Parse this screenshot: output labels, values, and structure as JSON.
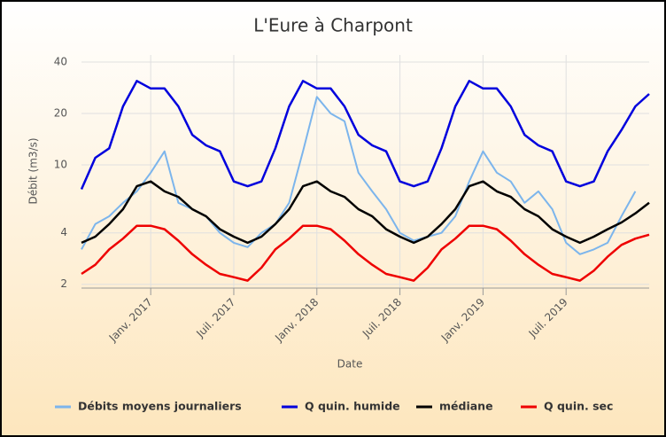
{
  "chart_data": {
    "type": "line",
    "title": "L'Eure à Charpont",
    "xlabel": "Date",
    "ylabel": "Débit (m3/s)",
    "x": [
      "2016-08",
      "2016-09",
      "2016-10",
      "2016-11",
      "2016-12",
      "2017-01",
      "2017-02",
      "2017-03",
      "2017-04",
      "2017-05",
      "2017-06",
      "2017-07",
      "2017-08",
      "2017-09",
      "2017-10",
      "2017-11",
      "2017-12",
      "2018-01",
      "2018-02",
      "2018-03",
      "2018-04",
      "2018-05",
      "2018-06",
      "2018-07",
      "2018-08",
      "2018-09",
      "2018-10",
      "2018-11",
      "2018-12",
      "2019-01",
      "2019-02",
      "2019-03",
      "2019-04",
      "2019-05",
      "2019-06",
      "2019-07",
      "2019-08",
      "2019-09",
      "2019-10",
      "2019-11",
      "2019-12",
      "2020-01"
    ],
    "xlim": [
      "2016-08",
      "2020-01"
    ],
    "xticks": [
      {
        "value": "2017-01",
        "label": "Janv. 2017"
      },
      {
        "value": "2017-07",
        "label": "Juil. 2017"
      },
      {
        "value": "2018-01",
        "label": "Janv. 2018"
      },
      {
        "value": "2018-07",
        "label": "Juil. 2018"
      },
      {
        "value": "2019-01",
        "label": "Janv. 2019"
      },
      {
        "value": "2019-07",
        "label": "Juil. 2019"
      }
    ],
    "ylim": [
      1.9,
      44
    ],
    "yticks": [
      2,
      4,
      10,
      20,
      40
    ],
    "log_y": true,
    "grid": true,
    "legend": "bottom",
    "series": [
      {
        "name": "Débits moyens journaliers",
        "color": "#7cb5ec",
        "values": [
          3.2,
          4.5,
          5,
          6,
          7,
          9,
          12,
          6,
          5.5,
          5,
          4,
          3.5,
          3.3,
          4,
          4.5,
          6,
          12,
          25,
          20,
          18,
          9,
          7,
          5.5,
          4,
          3.6,
          3.8,
          4,
          5,
          8,
          12,
          9,
          8,
          6,
          7,
          5.5,
          3.5,
          3,
          3.2,
          3.5,
          5,
          7,
          null
        ]
      },
      {
        "name": "Q quin. humide",
        "color": "#0000dd",
        "values": [
          7.2,
          11,
          12.5,
          22,
          31,
          28,
          28,
          22,
          15,
          13,
          12,
          8,
          7.5,
          8,
          12.5,
          22,
          31,
          28,
          28,
          22,
          15,
          13,
          12,
          8,
          7.5,
          8,
          12.5,
          22,
          31,
          28,
          28,
          22,
          15,
          13,
          12,
          8,
          7.5,
          8,
          12,
          16,
          22,
          26
        ]
      },
      {
        "name": "médiane",
        "color": "#000000",
        "values": [
          3.5,
          3.8,
          4.5,
          5.5,
          7.5,
          8,
          7,
          6.5,
          5.5,
          5,
          4.2,
          3.8,
          3.5,
          3.8,
          4.5,
          5.5,
          7.5,
          8,
          7,
          6.5,
          5.5,
          5,
          4.2,
          3.8,
          3.5,
          3.8,
          4.5,
          5.5,
          7.5,
          8,
          7,
          6.5,
          5.5,
          5,
          4.2,
          3.8,
          3.5,
          3.8,
          4.2,
          4.6,
          5.2,
          6
        ]
      },
      {
        "name": "Q quin. sec",
        "color": "#ee0000",
        "values": [
          2.3,
          2.6,
          3.2,
          3.7,
          4.4,
          4.4,
          4.2,
          3.6,
          3,
          2.6,
          2.3,
          2.2,
          2.1,
          2.5,
          3.2,
          3.7,
          4.4,
          4.4,
          4.2,
          3.6,
          3,
          2.6,
          2.3,
          2.2,
          2.1,
          2.5,
          3.2,
          3.7,
          4.4,
          4.4,
          4.2,
          3.6,
          3,
          2.6,
          2.3,
          2.2,
          2.1,
          2.4,
          2.9,
          3.4,
          3.7,
          3.9
        ]
      }
    ]
  }
}
